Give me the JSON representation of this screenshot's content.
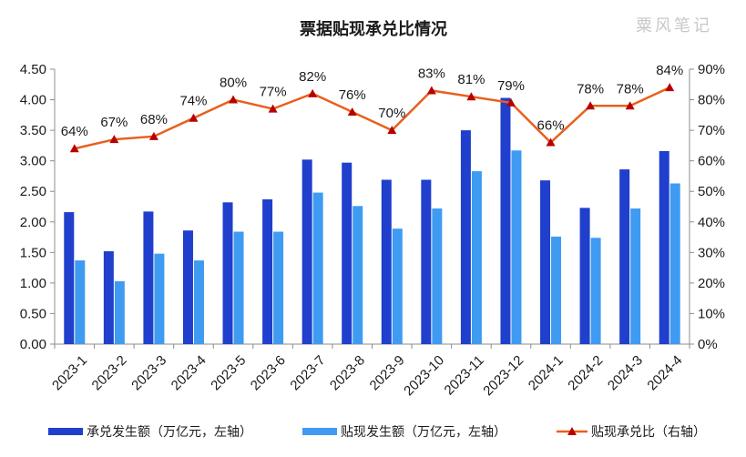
{
  "chart_data": {
    "type": "bar+line",
    "title": "票据贴现承兑比情况",
    "watermark": "粟风笔记",
    "categories": [
      "2023-1",
      "2023-2",
      "2023-3",
      "2023-4",
      "2023-5",
      "2023-6",
      "2023-7",
      "2023-8",
      "2023-9",
      "2023-10",
      "2023-11",
      "2023-12",
      "2024-1",
      "2024-2",
      "2024-3",
      "2024-4"
    ],
    "series": [
      {
        "name": "承兑发生额（万亿元，左轴）",
        "type": "bar",
        "axis": "left",
        "color": "#1f3fcc",
        "values": [
          2.16,
          1.52,
          2.17,
          1.86,
          2.32,
          2.37,
          3.02,
          2.97,
          2.69,
          2.69,
          3.5,
          4.03,
          2.68,
          2.23,
          2.86,
          3.16
        ]
      },
      {
        "name": "贴现发生额（万亿元，左轴）",
        "type": "bar",
        "axis": "right_bar",
        "color": "#3f9bf2",
        "values": [
          1.37,
          1.03,
          1.48,
          1.37,
          1.84,
          1.84,
          2.48,
          2.26,
          1.89,
          2.22,
          2.83,
          3.17,
          1.76,
          1.74,
          2.22,
          2.63
        ]
      },
      {
        "name": "贴现承兑比（右轴）",
        "type": "line",
        "axis": "right",
        "color": "#e8601c",
        "marker_color": "#b80000",
        "values": [
          64,
          67,
          68,
          74,
          80,
          77,
          82,
          76,
          70,
          83,
          81,
          79,
          66,
          78,
          78,
          84
        ],
        "labels": [
          "64%",
          "67%",
          "68%",
          "74%",
          "80%",
          "77%",
          "82%",
          "76%",
          "70%",
          "83%",
          "81%",
          "79%",
          "66%",
          "78%",
          "78%",
          "84%"
        ]
      }
    ],
    "y_left": {
      "min": 0,
      "max": 4.5,
      "ticks": [
        "0.00",
        "0.50",
        "1.00",
        "1.50",
        "2.00",
        "2.50",
        "3.00",
        "3.50",
        "4.00",
        "4.50"
      ]
    },
    "y_right": {
      "min": 0,
      "max": 90,
      "ticks": [
        "0%",
        "10%",
        "20%",
        "30%",
        "40%",
        "50%",
        "60%",
        "70%",
        "80%",
        "90%"
      ]
    },
    "grid": false,
    "legend_position": "bottom"
  }
}
